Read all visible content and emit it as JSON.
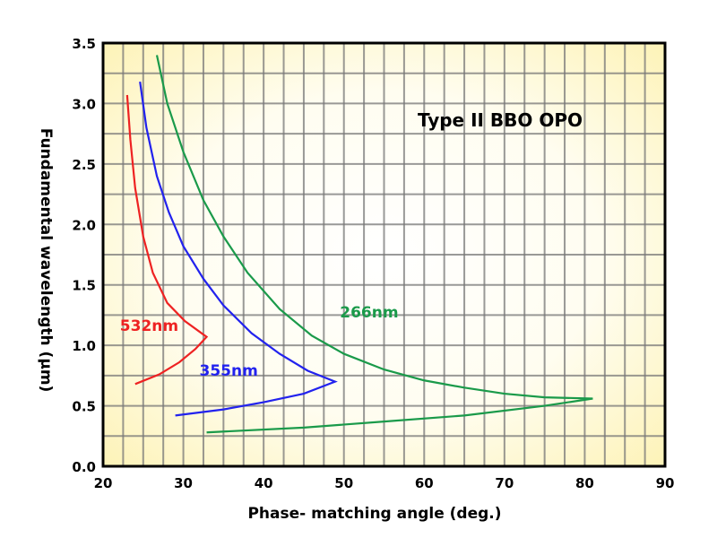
{
  "chart_data": {
    "type": "line",
    "title": "Type II  BBO OPO",
    "xlabel": "Phase- matching angle  (deg.)",
    "ylabel": "Fundamental wavelength (μm)",
    "xlim": [
      20,
      90
    ],
    "ylim": [
      0.0,
      3.5
    ],
    "xticks": [
      "20",
      "30",
      "40",
      "50",
      "60",
      "70",
      "80",
      "90"
    ],
    "yticks": [
      "0.0",
      "0.5",
      "1.0",
      "1.5",
      "2.0",
      "2.5",
      "3.0",
      "3.5"
    ],
    "grid": true,
    "grid_step_x": 2.5,
    "grid_step_y": 0.25,
    "series": [
      {
        "name": "532nm",
        "color": "#ee2222",
        "points": [
          [
            23.0,
            3.07
          ],
          [
            23.4,
            2.7
          ],
          [
            24.0,
            2.3
          ],
          [
            25.0,
            1.9
          ],
          [
            26.2,
            1.6
          ],
          [
            28.0,
            1.35
          ],
          [
            30.2,
            1.2
          ],
          [
            32.9,
            1.07
          ],
          [
            31.5,
            0.97
          ],
          [
            29.5,
            0.86
          ],
          [
            27.0,
            0.76
          ],
          [
            24.0,
            0.68
          ]
        ]
      },
      {
        "name": "355nm",
        "color": "#2222ee",
        "points": [
          [
            24.6,
            3.18
          ],
          [
            25.4,
            2.8
          ],
          [
            26.7,
            2.4
          ],
          [
            28.2,
            2.1
          ],
          [
            30.0,
            1.82
          ],
          [
            32.5,
            1.55
          ],
          [
            35.0,
            1.33
          ],
          [
            38.5,
            1.1
          ],
          [
            42.0,
            0.93
          ],
          [
            45.5,
            0.79
          ],
          [
            48.9,
            0.7
          ],
          [
            45.0,
            0.6
          ],
          [
            40.0,
            0.53
          ],
          [
            35.0,
            0.47
          ],
          [
            29.0,
            0.42
          ]
        ]
      },
      {
        "name": "266nm",
        "color": "#1a9a4a",
        "points": [
          [
            26.7,
            3.4
          ],
          [
            28.0,
            3.0
          ],
          [
            30.0,
            2.6
          ],
          [
            32.5,
            2.2
          ],
          [
            35.0,
            1.9
          ],
          [
            38.0,
            1.6
          ],
          [
            42.0,
            1.3
          ],
          [
            46.0,
            1.08
          ],
          [
            50.0,
            0.93
          ],
          [
            55.0,
            0.8
          ],
          [
            60.0,
            0.71
          ],
          [
            65.0,
            0.65
          ],
          [
            70.0,
            0.6
          ],
          [
            75.0,
            0.57
          ],
          [
            81.0,
            0.56
          ],
          [
            75.0,
            0.5
          ],
          [
            65.0,
            0.42
          ],
          [
            55.0,
            0.37
          ],
          [
            45.0,
            0.32
          ],
          [
            32.9,
            0.28
          ]
        ]
      }
    ],
    "annotations": [
      {
        "text": "532nm",
        "color": "#ee2222",
        "x": 22.1,
        "y": 1.12
      },
      {
        "text": "355nm",
        "color": "#2222ee",
        "x": 32.0,
        "y": 0.75
      },
      {
        "text": "266nm",
        "color": "#1a9a4a",
        "x": 49.5,
        "y": 1.23
      }
    ]
  }
}
